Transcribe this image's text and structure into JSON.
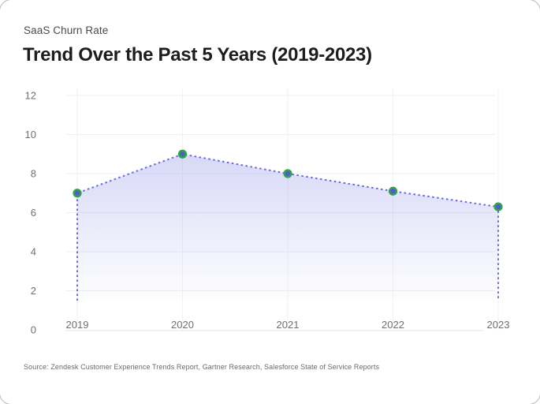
{
  "card": {
    "eyebrow": "SaaS Churn Rate",
    "title": "Trend Over the Past 5 Years (2019-2023)",
    "source": "Source: Zendesk Customer Experience Trends Report, Gartner Research, Salesforce State of Service Reports"
  },
  "colors": {
    "line": "#666ae3",
    "marker_fill": "#5459d2",
    "marker_stroke": "#2fa24d",
    "area_base": "#6165dd",
    "grid_horizontal": "#efeff1",
    "grid_vertical": "#f2f2f3",
    "axis_line": "#e3e3e6",
    "tick_text": "#6f6f73"
  },
  "chart_data": {
    "type": "area",
    "categories": [
      "2019",
      "2020",
      "2021",
      "2022",
      "2023"
    ],
    "values": [
      7.0,
      9.0,
      8.0,
      7.1,
      6.3
    ],
    "series_name": "SaaS Churn Rate (%)",
    "title": "SaaS Churn Rate — Trend Over the Past 5 Years (2019-2023)",
    "xlabel": "",
    "ylabel": "",
    "ylim": [
      0,
      12
    ],
    "yticks": [
      0,
      2,
      4,
      6,
      8,
      10,
      12
    ],
    "grid": true,
    "legend": false,
    "line_style": "dotted",
    "marker": "circle"
  }
}
